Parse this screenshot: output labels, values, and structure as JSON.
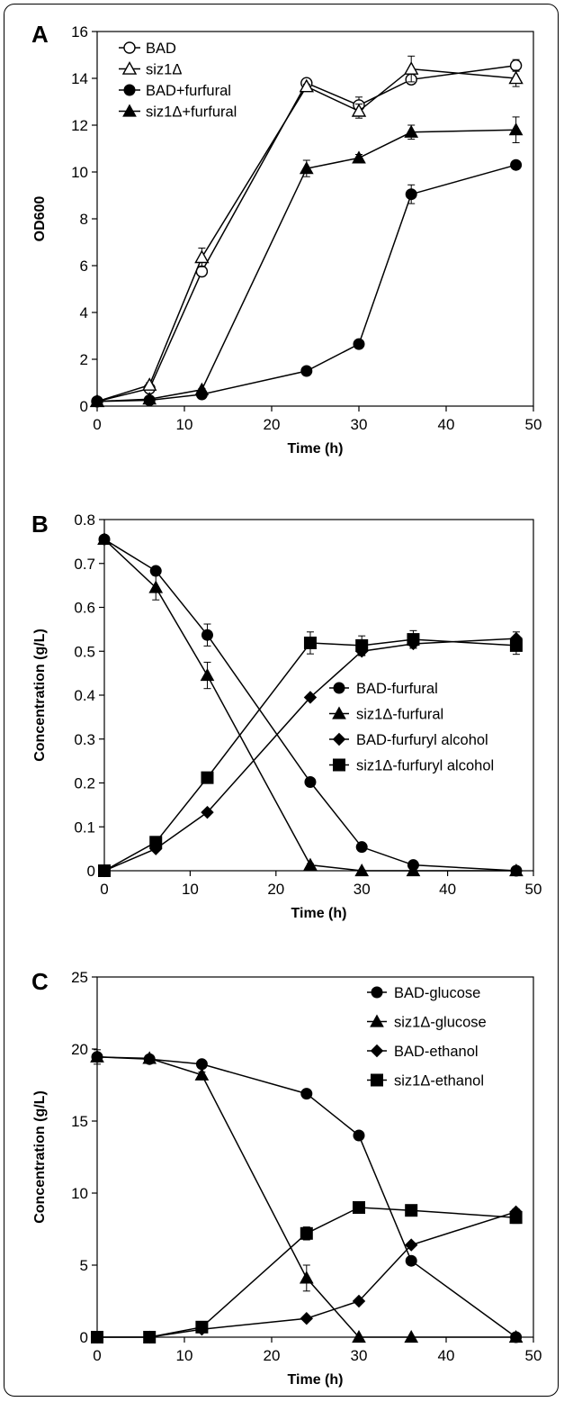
{
  "chart_data": [
    {
      "panel": "A",
      "type": "line",
      "xlabel": "Time (h)",
      "ylabel": "OD600",
      "xlim": [
        0,
        50
      ],
      "ylim": [
        0,
        16
      ],
      "xticks": [
        0,
        10,
        20,
        30,
        40,
        50
      ],
      "yticks": [
        0,
        2,
        4,
        6,
        8,
        10,
        12,
        14,
        16
      ],
      "legend_position": "top-left",
      "x": [
        0,
        6,
        12,
        24,
        30,
        36,
        48
      ],
      "series": [
        {
          "name": "BAD",
          "marker": "circle-open",
          "values": [
            0.2,
            0.75,
            5.75,
            13.8,
            12.85,
            13.95,
            14.55
          ],
          "errors": [
            0.05,
            0.05,
            0.2,
            0.15,
            0.35,
            0.2,
            0.25
          ]
        },
        {
          "name": "siz1Δ",
          "marker": "triangle-open",
          "values": [
            0.2,
            0.9,
            6.35,
            13.65,
            12.6,
            14.4,
            14.0
          ],
          "errors": [
            0.05,
            0.1,
            0.4,
            0.1,
            0.3,
            0.55,
            0.35
          ]
        },
        {
          "name": "BAD+furfural",
          "marker": "circle-filled",
          "values": [
            0.2,
            0.25,
            0.5,
            1.5,
            2.65,
            9.05,
            10.3
          ],
          "errors": [
            0.05,
            0.05,
            0.05,
            0.05,
            0.05,
            0.4,
            0.1
          ]
        },
        {
          "name": "siz1Δ+furfural",
          "marker": "triangle-filled",
          "values": [
            0.2,
            0.3,
            0.7,
            10.15,
            10.6,
            11.7,
            11.8
          ],
          "errors": [
            0.05,
            0.05,
            0.05,
            0.35,
            0.15,
            0.3,
            0.55
          ]
        }
      ]
    },
    {
      "panel": "B",
      "type": "line",
      "xlabel": "Time (h)",
      "ylabel": "Concentration (g/L)",
      "xlim": [
        0,
        50
      ],
      "ylim": [
        0,
        0.8
      ],
      "xticks": [
        0,
        10,
        20,
        30,
        40,
        50
      ],
      "yticks": [
        0,
        0.1,
        0.2,
        0.3,
        0.4,
        0.5,
        0.6,
        0.7,
        0.8
      ],
      "legend_position": "center-right",
      "x": [
        0,
        6,
        12,
        24,
        30,
        36,
        48
      ],
      "series": [
        {
          "name": "BAD-furfural",
          "marker": "circle-filled",
          "values": [
            0.755,
            0.683,
            0.537,
            0.202,
            0.054,
            0.013,
            0.0
          ],
          "errors": [
            0.005,
            0.005,
            0.025,
            0.005,
            0.003,
            0.003,
            0.002
          ]
        },
        {
          "name": "siz1Δ-furfural",
          "marker": "triangle-filled",
          "values": [
            0.755,
            0.645,
            0.445,
            0.013,
            0.0,
            0.0,
            0.0
          ],
          "errors": [
            0.005,
            0.028,
            0.03,
            0.003,
            0.002,
            0.002,
            0.002
          ]
        },
        {
          "name": "BAD-furfuryl alcohol",
          "marker": "diamond-filled",
          "values": [
            0.0,
            0.05,
            0.133,
            0.395,
            0.5,
            0.517,
            0.529
          ],
          "errors": [
            0.0,
            0.003,
            0.005,
            0.005,
            0.01,
            0.01,
            0.015
          ]
        },
        {
          "name": "siz1Δ-furfuryl alcohol",
          "marker": "square-filled",
          "values": [
            0.0,
            0.065,
            0.212,
            0.519,
            0.513,
            0.527,
            0.513
          ],
          "errors": [
            0.0,
            0.003,
            0.005,
            0.025,
            0.022,
            0.02,
            0.02
          ]
        }
      ]
    },
    {
      "panel": "C",
      "type": "line",
      "xlabel": "Time (h)",
      "ylabel": "Concentration (g/L)",
      "xlim": [
        0,
        50
      ],
      "ylim": [
        0,
        25
      ],
      "xticks": [
        0,
        10,
        20,
        30,
        40,
        50
      ],
      "yticks": [
        0,
        5,
        10,
        15,
        20,
        25
      ],
      "legend_position": "top-right",
      "x": [
        0,
        6,
        12,
        24,
        30,
        36,
        48
      ],
      "series": [
        {
          "name": "BAD-glucose",
          "marker": "circle-filled",
          "values": [
            19.45,
            19.3,
            18.95,
            16.9,
            14.0,
            5.3,
            0.0
          ],
          "errors": [
            0.5,
            0.15,
            0.15,
            0.15,
            0.15,
            0.2,
            0.1
          ]
        },
        {
          "name": "siz1Δ-glucose",
          "marker": "triangle-filled",
          "values": [
            19.45,
            19.35,
            18.2,
            4.1,
            0.0,
            0.0,
            0.0
          ],
          "errors": [
            0.2,
            0.15,
            0.2,
            0.9,
            0.0,
            0.0,
            0.0
          ]
        },
        {
          "name": "BAD-ethanol",
          "marker": "diamond-filled",
          "values": [
            0.0,
            0.0,
            0.55,
            1.3,
            2.5,
            6.4,
            8.7
          ],
          "errors": [
            0.0,
            0.0,
            0.05,
            0.05,
            0.05,
            0.1,
            0.2
          ]
        },
        {
          "name": "siz1Δ-ethanol",
          "marker": "square-filled",
          "values": [
            0.0,
            0.0,
            0.7,
            7.2,
            9.0,
            8.8,
            8.3
          ],
          "errors": [
            0.0,
            0.0,
            0.05,
            0.45,
            0.1,
            0.1,
            0.4
          ]
        }
      ]
    }
  ]
}
